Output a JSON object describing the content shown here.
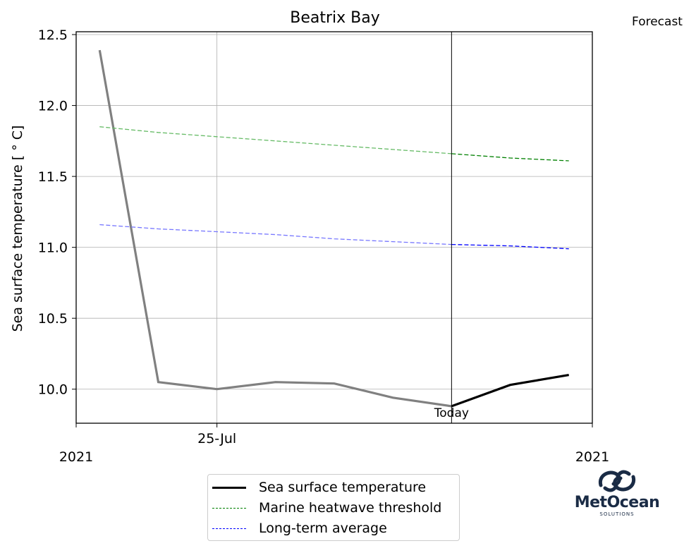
{
  "chart_data": {
    "type": "line",
    "title": "Beatrix Bay",
    "corner_label": "Forecast",
    "ylabel": "Sea surface temperature [$^\\circ$C]",
    "ylabel_display": "Sea surface temperature [ ° C]",
    "ylim": [
      9.76,
      12.52
    ],
    "yticks": [
      "10.0",
      "10.5",
      "11.0",
      "11.5",
      "12.0",
      "12.5"
    ],
    "ytick_values": [
      10.0,
      10.5,
      11.0,
      11.5,
      12.0,
      12.5
    ],
    "xlim": [
      -0.4,
      8.4
    ],
    "x_tick_labels": [
      {
        "x": 2,
        "label": "25-Jul"
      }
    ],
    "x_year_labels": {
      "left": "2021",
      "right": "2021"
    },
    "today_label": "Today",
    "today_x": 6,
    "grid": true,
    "legend_position": "bottom-center",
    "series": [
      {
        "name": "Sea surface temperature",
        "style": "solid",
        "color": "#000000",
        "history_color": "#808080",
        "x": [
          0,
          1,
          2,
          3,
          4,
          5,
          6,
          7,
          8
        ],
        "values": [
          12.39,
          10.05,
          10.0,
          10.05,
          10.04,
          9.94,
          9.88,
          10.03,
          10.1
        ]
      },
      {
        "name": "Marine heatwave threshold",
        "style": "dashed",
        "color": "#008000",
        "history_color": "#66bb66",
        "x": [
          0,
          1,
          2,
          3,
          4,
          5,
          6,
          7,
          8
        ],
        "values": [
          11.85,
          11.81,
          11.78,
          11.75,
          11.72,
          11.69,
          11.66,
          11.63,
          11.61
        ]
      },
      {
        "name": "Long-term average",
        "style": "dashed",
        "color": "#0000ff",
        "history_color": "#7777ff",
        "x": [
          0,
          1,
          2,
          3,
          4,
          5,
          6,
          7,
          8
        ],
        "values": [
          11.16,
          11.13,
          11.11,
          11.09,
          11.06,
          11.04,
          11.02,
          11.01,
          10.99
        ]
      }
    ]
  },
  "logo": {
    "word": "MetOcean",
    "sub": "SOLUTIONS",
    "color": "#1a2b45"
  }
}
